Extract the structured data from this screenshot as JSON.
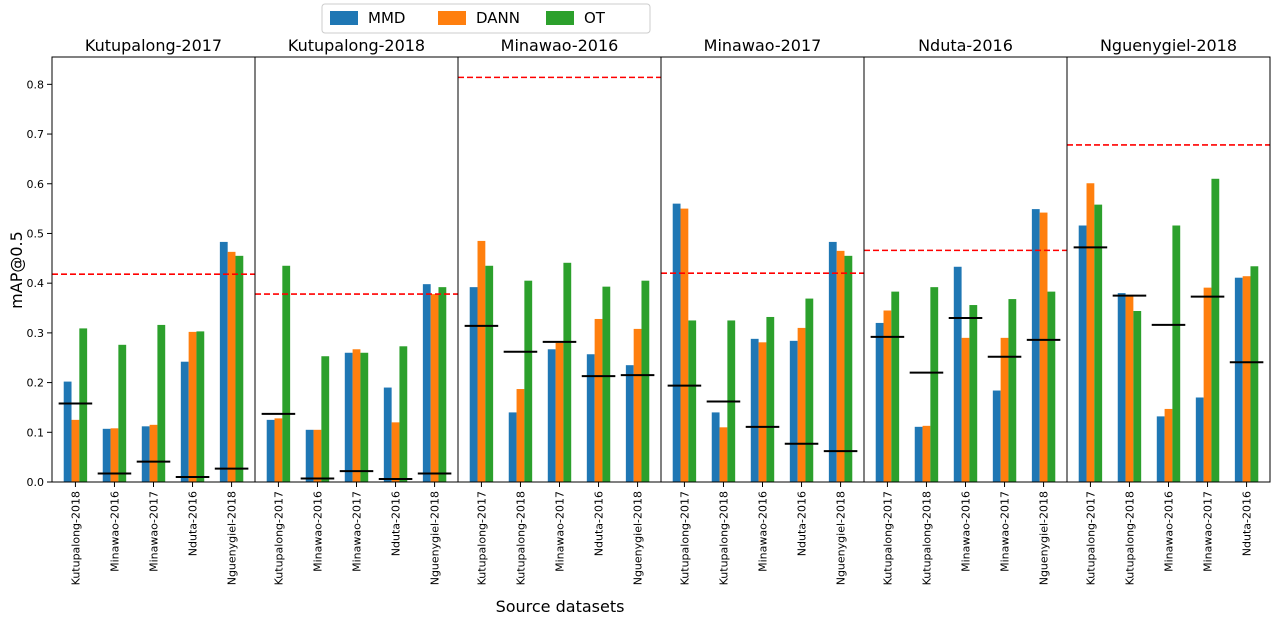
{
  "ylabel": "mAP@0.5",
  "xlabel": "Source datasets",
  "chart_data": [
    {
      "type": "bar",
      "title": "Kutupalong-2017",
      "categories": [
        "Kutupalong-2018",
        "Minawao-2016",
        "Minawao-2017",
        "Nduta-2016",
        "Nguenygiel-2018"
      ],
      "series": [
        {
          "name": "MMD",
          "color": "#1f77b4",
          "values": [
            0.202,
            0.107,
            0.112,
            0.242,
            0.483
          ]
        },
        {
          "name": "DANN",
          "color": "#ff7f0e",
          "values": [
            0.125,
            0.108,
            0.115,
            0.302,
            0.463
          ]
        },
        {
          "name": "OT",
          "color": "#2ca02c",
          "values": [
            0.309,
            0.276,
            0.316,
            0.303,
            0.455
          ]
        }
      ],
      "baseline_values": [
        0.158,
        0.017,
        0.041,
        0.01,
        0.027
      ],
      "baseline_color": "#000000",
      "target_value": 0.418,
      "target_color": "#ff0000",
      "ylim": [
        0,
        0.855
      ],
      "yticks": [
        {
          "value": 0,
          "label": "0.0"
        },
        0.1,
        0.2,
        0.3,
        0.4,
        0.5,
        0.6,
        0.7,
        0.8
      ]
    },
    {
      "type": "bar",
      "title": "Kutupalong-2018",
      "categories": [
        "Kutupalong-2017",
        "Minawao-2016",
        "Minawao-2017",
        "Nduta-2016",
        "Nguenygiel-2018"
      ],
      "series": [
        {
          "name": "MMD",
          "color": "#1f77b4",
          "values": [
            0.125,
            0.105,
            0.26,
            0.19,
            0.398
          ]
        },
        {
          "name": "DANN",
          "color": "#ff7f0e",
          "values": [
            0.128,
            0.105,
            0.267,
            0.12,
            0.378
          ]
        },
        {
          "name": "OT",
          "color": "#2ca02c",
          "values": [
            0.435,
            0.253,
            0.26,
            0.273,
            0.392
          ]
        }
      ],
      "baseline_values": [
        0.137,
        0.007,
        0.022,
        0.006,
        0.017
      ],
      "baseline_color": "#000000",
      "target_value": 0.378,
      "target_color": "#ff0000",
      "ylim": [
        0,
        0.855
      ]
    },
    {
      "type": "bar",
      "title": "Minawao-2016",
      "categories": [
        "Kutupalong-2017",
        "Kutupalong-2018",
        "Minawao-2017",
        "Nduta-2016",
        "Nguenygiel-2018"
      ],
      "series": [
        {
          "name": "MMD",
          "color": "#1f77b4",
          "values": [
            0.392,
            0.14,
            0.267,
            0.257,
            0.235
          ]
        },
        {
          "name": "DANN",
          "color": "#ff7f0e",
          "values": [
            0.485,
            0.187,
            0.28,
            0.328,
            0.308
          ]
        },
        {
          "name": "OT",
          "color": "#2ca02c",
          "values": [
            0.435,
            0.405,
            0.441,
            0.393,
            0.405
          ]
        }
      ],
      "baseline_values": [
        0.314,
        0.262,
        0.282,
        0.213,
        0.215
      ],
      "baseline_color": "#000000",
      "target_value": 0.814,
      "target_color": "#ff0000",
      "ylim": [
        0,
        0.855
      ]
    },
    {
      "type": "bar",
      "title": "Minawao-2017",
      "categories": [
        "Kutupalong-2017",
        "Kutupalong-2018",
        "Minawao-2016",
        "Nduta-2016",
        "Nguenygiel-2018"
      ],
      "series": [
        {
          "name": "MMD",
          "color": "#1f77b4",
          "values": [
            0.56,
            0.14,
            0.288,
            0.284,
            0.483
          ]
        },
        {
          "name": "DANN",
          "color": "#ff7f0e",
          "values": [
            0.55,
            0.11,
            0.281,
            0.31,
            0.465
          ]
        },
        {
          "name": "OT",
          "color": "#2ca02c",
          "values": [
            0.325,
            0.325,
            0.332,
            0.369,
            0.455
          ]
        }
      ],
      "baseline_values": [
        0.194,
        0.162,
        0.111,
        0.077,
        0.062
      ],
      "baseline_color": "#000000",
      "target_value": 0.42,
      "target_color": "#ff0000",
      "ylim": [
        0,
        0.855
      ]
    },
    {
      "type": "bar",
      "title": "Nduta-2016",
      "categories": [
        "Kutupalong-2017",
        "Kutupalong-2018",
        "Minawao-2016",
        "Minawao-2017",
        "Nguenygiel-2018"
      ],
      "series": [
        {
          "name": "MMD",
          "color": "#1f77b4",
          "values": [
            0.32,
            0.111,
            0.433,
            0.184,
            0.549
          ]
        },
        {
          "name": "DANN",
          "color": "#ff7f0e",
          "values": [
            0.345,
            0.113,
            0.29,
            0.29,
            0.542
          ]
        },
        {
          "name": "OT",
          "color": "#2ca02c",
          "values": [
            0.383,
            0.392,
            0.356,
            0.368,
            0.383
          ]
        }
      ],
      "baseline_values": [
        0.292,
        0.22,
        0.33,
        0.252,
        0.286
      ],
      "baseline_color": "#000000",
      "target_value": 0.466,
      "target_color": "#ff0000",
      "ylim": [
        0,
        0.855
      ]
    },
    {
      "type": "bar",
      "title": "Nguenygiel-2018",
      "categories": [
        "Kutupalong-2017",
        "Kutupalong-2018",
        "Minawao-2016",
        "Minawao-2017",
        "Nduta-2016"
      ],
      "series": [
        {
          "name": "MMD",
          "color": "#1f77b4",
          "values": [
            0.516,
            0.38,
            0.132,
            0.17,
            0.411
          ]
        },
        {
          "name": "DANN",
          "color": "#ff7f0e",
          "values": [
            0.601,
            0.376,
            0.147,
            0.391,
            0.414
          ]
        },
        {
          "name": "OT",
          "color": "#2ca02c",
          "values": [
            0.558,
            0.344,
            0.516,
            0.61,
            0.434
          ]
        }
      ],
      "baseline_values": [
        0.472,
        0.375,
        0.316,
        0.373,
        0.241
      ],
      "baseline_color": "#000000",
      "target_value": 0.678,
      "target_color": "#ff0000",
      "ylim": [
        0,
        0.855
      ]
    }
  ]
}
